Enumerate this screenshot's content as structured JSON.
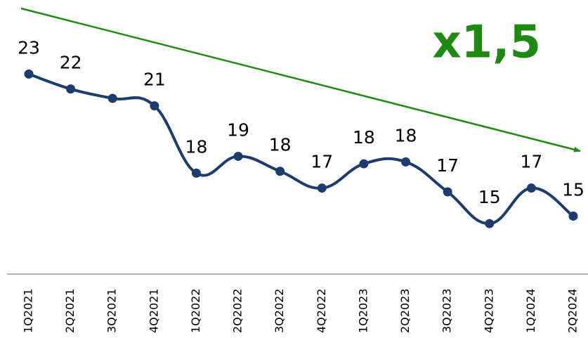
{
  "chart_data": {
    "type": "line",
    "annotation": "x1,5",
    "categories": [
      "1Q2021",
      "2Q2021",
      "3Q2021",
      "4Q2021",
      "1Q2022",
      "2Q2022",
      "3Q2022",
      "4Q2022",
      "1Q2023",
      "2Q2023",
      "3Q2023",
      "4Q2023",
      "1Q2024",
      "2Q2024"
    ],
    "series": [
      {
        "color": "#1c3c6e",
        "values": [
          23,
          22.2,
          21.7,
          21.3,
          17.7,
          18.6,
          17.8,
          16.9,
          18.2,
          18.3,
          16.7,
          15.0,
          16.9,
          15.4
        ],
        "value_labels": [
          "23",
          "22",
          null,
          "21",
          "18",
          "19",
          "18",
          "17",
          "18",
          "18",
          "17",
          "15",
          "17",
          "15"
        ]
      }
    ],
    "ylim": [
      12,
      27
    ],
    "trend_color": "#1f8a11"
  }
}
